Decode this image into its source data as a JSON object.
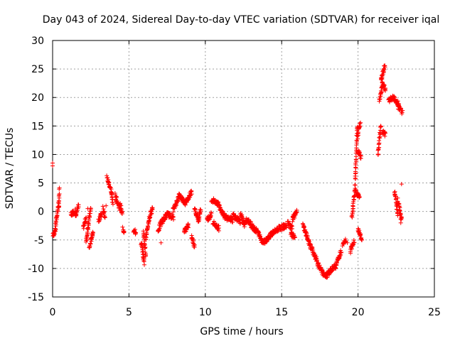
{
  "chart_data": {
    "type": "scatter",
    "title": "Day 043 of 2024, Sidereal Day-to-day VTEC variation (SDTVAR) for receiver iqal",
    "xlabel": "GPS time / hours",
    "ylabel": "SDTVAR / TECUs",
    "xlim": [
      0,
      25
    ],
    "ylim": [
      -15,
      30
    ],
    "xticks": [
      0,
      5,
      10,
      15,
      20,
      25
    ],
    "yticks": [
      -15,
      -10,
      -5,
      0,
      5,
      10,
      15,
      20,
      25,
      30
    ],
    "grid": true,
    "marker": "+",
    "color": "#ff0000",
    "segments": [
      {
        "x": [
          0.0,
          0.2
        ],
        "y": [
          -4.5,
          -3.0
        ]
      },
      {
        "x": [
          0.2,
          0.4
        ],
        "y": [
          -2.5,
          1.5
        ]
      },
      {
        "x": [
          0.4,
          0.45
        ],
        "y": [
          0.5,
          3.8
        ]
      },
      {
        "x": [
          1.2,
          1.5
        ],
        "y": [
          -0.5,
          0.2
        ]
      },
      {
        "x": [
          1.5,
          1.7
        ],
        "y": [
          -1.0,
          1.0
        ]
      },
      {
        "x": [
          2.0,
          2.2
        ],
        "y": [
          -3.0,
          -1.0
        ]
      },
      {
        "x": [
          2.2,
          2.35
        ],
        "y": [
          -5.5,
          -2.0
        ]
      },
      {
        "x": [
          2.35,
          2.5
        ],
        "y": [
          -2.0,
          0.5
        ]
      },
      {
        "x": [
          2.4,
          2.65
        ],
        "y": [
          -6.5,
          -3.5
        ]
      },
      {
        "x": [
          3.0,
          3.2
        ],
        "y": [
          -1.5,
          -0.5
        ]
      },
      {
        "x": [
          3.3,
          3.45
        ],
        "y": [
          0.5,
          -1.0
        ]
      },
      {
        "x": [
          3.55,
          3.8
        ],
        "y": [
          6.0,
          4.0
        ]
      },
      {
        "x": [
          3.8,
          3.95
        ],
        "y": [
          4.0,
          1.5
        ]
      },
      {
        "x": [
          4.1,
          4.4
        ],
        "y": [
          2.8,
          0.5
        ]
      },
      {
        "x": [
          4.4,
          4.55
        ],
        "y": [
          1.5,
          -0.5
        ]
      },
      {
        "x": [
          4.6,
          4.7
        ],
        "y": [
          -3.0,
          -3.5
        ]
      },
      {
        "x": [
          5.3,
          5.45
        ],
        "y": [
          -3.2,
          -3.8
        ]
      },
      {
        "x": [
          5.8,
          6.0
        ],
        "y": [
          -5.5,
          -9.0
        ]
      },
      {
        "x": [
          5.95,
          6.1
        ],
        "y": [
          -3.5,
          -7.5
        ]
      },
      {
        "x": [
          6.1,
          6.3
        ],
        "y": [
          -5.0,
          -1.5
        ]
      },
      {
        "x": [
          6.3,
          6.55
        ],
        "y": [
          -1.5,
          0.8
        ]
      },
      {
        "x": [
          6.9,
          7.1
        ],
        "y": [
          -3.5,
          -2.0
        ]
      },
      {
        "x": [
          7.1,
          7.5
        ],
        "y": [
          -2.0,
          -0.5
        ]
      },
      {
        "x": [
          7.5,
          7.9
        ],
        "y": [
          -0.5,
          -1.0
        ]
      },
      {
        "x": [
          7.9,
          8.3
        ],
        "y": [
          0.2,
          2.8
        ]
      },
      {
        "x": [
          8.3,
          8.7
        ],
        "y": [
          2.8,
          1.5
        ]
      },
      {
        "x": [
          8.7,
          9.1
        ],
        "y": [
          1.5,
          3.5
        ]
      },
      {
        "x": [
          8.6,
          8.9
        ],
        "y": [
          -3.5,
          -2.5
        ]
      },
      {
        "x": [
          9.1,
          9.3
        ],
        "y": [
          -4.5,
          -6.0
        ]
      },
      {
        "x": [
          9.3,
          9.55
        ],
        "y": [
          0.5,
          -1.5
        ]
      },
      {
        "x": [
          9.55,
          9.7
        ],
        "y": [
          -1.5,
          0.5
        ]
      },
      {
        "x": [
          10.1,
          10.4
        ],
        "y": [
          -1.5,
          -0.5
        ]
      },
      {
        "x": [
          10.4,
          10.8
        ],
        "y": [
          2.0,
          1.5
        ]
      },
      {
        "x": [
          10.5,
          10.9
        ],
        "y": [
          -2.0,
          -3.0
        ]
      },
      {
        "x": [
          10.8,
          11.3
        ],
        "y": [
          1.5,
          -1.0
        ]
      },
      {
        "x": [
          11.3,
          11.8
        ],
        "y": [
          -1.0,
          -1.5
        ]
      },
      {
        "x": [
          11.8,
          12.3
        ],
        "y": [
          -0.5,
          -2.0
        ]
      },
      {
        "x": [
          12.3,
          12.6
        ],
        "y": [
          -0.5,
          -2.5
        ]
      },
      {
        "x": [
          12.6,
          13.0
        ],
        "y": [
          -1.5,
          -2.0
        ]
      },
      {
        "x": [
          13.0,
          13.4
        ],
        "y": [
          -2.5,
          -3.5
        ]
      },
      {
        "x": [
          13.4,
          13.8
        ],
        "y": [
          -3.5,
          -5.5
        ]
      },
      {
        "x": [
          13.8,
          14.3
        ],
        "y": [
          -5.5,
          -4.0
        ]
      },
      {
        "x": [
          14.3,
          14.8
        ],
        "y": [
          -4.0,
          -3.0
        ]
      },
      {
        "x": [
          14.8,
          15.3
        ],
        "y": [
          -3.0,
          -2.5
        ]
      },
      {
        "x": [
          15.4,
          15.7
        ],
        "y": [
          -2.0,
          -3.0
        ]
      },
      {
        "x": [
          15.6,
          15.85
        ],
        "y": [
          -4.0,
          -4.5
        ]
      },
      {
        "x": [
          15.7,
          16.0
        ],
        "y": [
          -1.5,
          0.2
        ]
      },
      {
        "x": [
          16.4,
          16.8
        ],
        "y": [
          -2.5,
          -5.5
        ]
      },
      {
        "x": [
          16.8,
          17.2
        ],
        "y": [
          -5.5,
          -8.0
        ]
      },
      {
        "x": [
          17.2,
          17.5
        ],
        "y": [
          -8.0,
          -10.0
        ]
      },
      {
        "x": [
          17.5,
          17.9
        ],
        "y": [
          -10.0,
          -11.5
        ]
      },
      {
        "x": [
          17.9,
          18.3
        ],
        "y": [
          -11.5,
          -10.0
        ]
      },
      {
        "x": [
          18.3,
          18.6
        ],
        "y": [
          -10.0,
          -9.5
        ]
      },
      {
        "x": [
          18.6,
          18.9
        ],
        "y": [
          -9.0,
          -7.0
        ]
      },
      {
        "x": [
          19.0,
          19.2
        ],
        "y": [
          -6.0,
          -5.0
        ]
      },
      {
        "x": [
          19.5,
          19.75
        ],
        "y": [
          -7.0,
          -5.0
        ]
      },
      {
        "x": [
          19.6,
          19.8
        ],
        "y": [
          -1.0,
          4.0
        ]
      },
      {
        "x": [
          19.8,
          19.95
        ],
        "y": [
          4.0,
          15.0
        ]
      },
      {
        "x": [
          19.95,
          20.15
        ],
        "y": [
          13.0,
          15.5
        ]
      },
      {
        "x": [
          19.85,
          20.1
        ],
        "y": [
          3.5,
          2.5
        ]
      },
      {
        "x": [
          20.0,
          20.2
        ],
        "y": [
          10.5,
          9.5
        ]
      },
      {
        "x": [
          20.0,
          20.25
        ],
        "y": [
          -3.0,
          -5.0
        ]
      },
      {
        "x": [
          21.3,
          21.5
        ],
        "y": [
          10.0,
          15.0
        ]
      },
      {
        "x": [
          21.4,
          21.6
        ],
        "y": [
          19.5,
          22.5
        ]
      },
      {
        "x": [
          21.5,
          21.75
        ],
        "y": [
          23.0,
          25.5
        ]
      },
      {
        "x": [
          21.6,
          21.8
        ],
        "y": [
          14.0,
          13.5
        ]
      },
      {
        "x": [
          21.6,
          21.8
        ],
        "y": [
          22.5,
          21.5
        ]
      },
      {
        "x": [
          22.0,
          22.35
        ],
        "y": [
          19.5,
          20.0
        ]
      },
      {
        "x": [
          22.35,
          22.7
        ],
        "y": [
          20.0,
          18.5
        ]
      },
      {
        "x": [
          22.6,
          22.9
        ],
        "y": [
          18.5,
          17.5
        ]
      },
      {
        "x": [
          22.4,
          22.6
        ],
        "y": [
          3.5,
          -0.5
        ]
      },
      {
        "x": [
          22.6,
          22.85
        ],
        "y": [
          2.0,
          -1.5
        ]
      }
    ],
    "points": [
      {
        "x": 0.0,
        "y": 8.5
      },
      {
        "x": 0.0,
        "y": 8.0
      },
      {
        "x": 2.3,
        "y": 0.5
      },
      {
        "x": 3.5,
        "y": 1.0
      },
      {
        "x": 7.1,
        "y": -5.5
      },
      {
        "x": 19.3,
        "y": -5.5
      },
      {
        "x": 22.85,
        "y": 4.8
      },
      {
        "x": 22.8,
        "y": -2.0
      }
    ]
  }
}
